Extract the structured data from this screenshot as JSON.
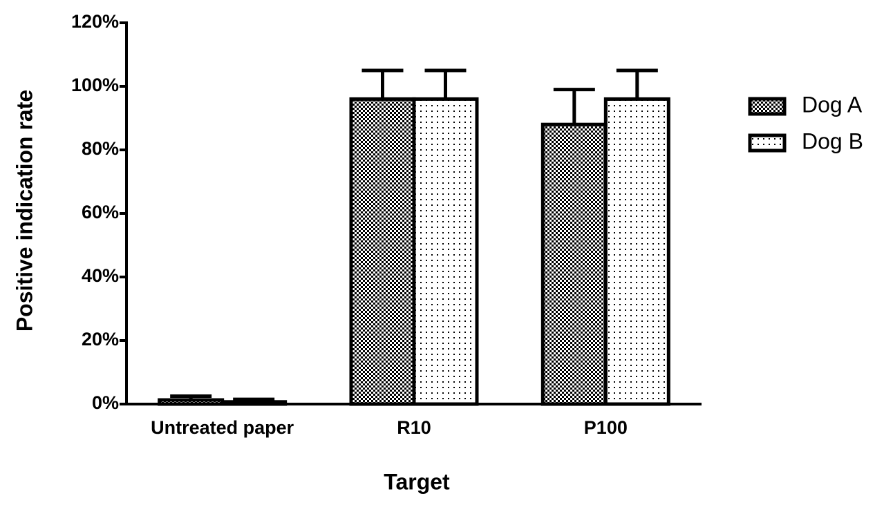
{
  "chart_data": {
    "type": "bar",
    "x_label": "Target",
    "y_label": "Positive indication rate",
    "categories": [
      "Untreated paper",
      "R10",
      "P100"
    ],
    "series": [
      {
        "name": "Dog A",
        "color": "#000000",
        "values": [
          1.3,
          96,
          88
        ],
        "errors": [
          1.2,
          9,
          11
        ]
      },
      {
        "name": "Dog B",
        "color": "#000000",
        "values": [
          0.7,
          96,
          96
        ],
        "errors": [
          0.8,
          9,
          9
        ]
      }
    ],
    "ylim": [
      0,
      120
    ],
    "yticks": [
      {
        "value": 0,
        "label": "0%"
      },
      {
        "value": 20,
        "label": "20%"
      },
      {
        "value": 40,
        "label": "40%"
      },
      {
        "value": 60,
        "label": "60%"
      },
      {
        "value": 80,
        "label": "80%"
      },
      {
        "value": 100,
        "label": "100%"
      },
      {
        "value": 120,
        "label": "120%"
      }
    ],
    "legend": "right"
  }
}
